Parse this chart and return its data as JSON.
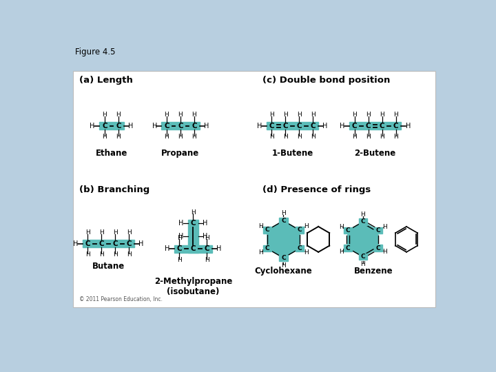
{
  "title": "Figure 4.5",
  "background_color": "#b8cfe0",
  "panel_color": "#ffffff",
  "teal_color": "#5bbcb8",
  "section_labels": {
    "a": "(a) Length",
    "b": "(b) Branching",
    "c": "(c) Double bond position",
    "d": "(d) Presence of rings"
  },
  "molecule_labels": {
    "ethane": "Ethane",
    "propane": "Propane",
    "butene1": "1-Butene",
    "butene2": "2-Butene",
    "butane": "Butane",
    "methylpropane": "2-Methylpropane\n(isobutane)",
    "cyclohexane": "Cyclohexane",
    "benzene": "Benzene"
  },
  "copyright": "© 2011 Pearson Education, Inc."
}
